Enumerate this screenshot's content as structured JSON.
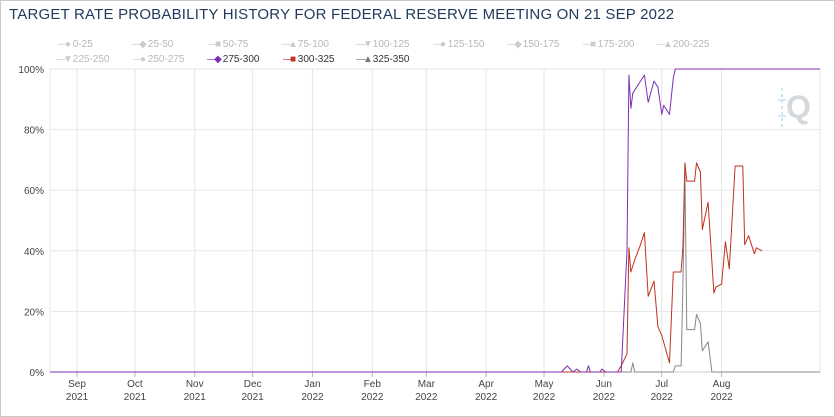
{
  "chart_data": {
    "type": "line",
    "title": "TARGET RATE PROBABILITY HISTORY FOR FEDERAL RESERVE MEETING ON 21 SEP 2022",
    "xlabel": "",
    "ylabel": "",
    "ylim": [
      0,
      100
    ],
    "y_ticks": [
      "0%",
      "20%",
      "40%",
      "60%",
      "80%",
      "100%"
    ],
    "x_range": [
      "2021-08-18",
      "2022-09-21"
    ],
    "x_ticks": [
      {
        "date": "2021-09-01",
        "month": "Sep",
        "year": "2021"
      },
      {
        "date": "2021-10-01",
        "month": "Oct",
        "year": "2021"
      },
      {
        "date": "2021-11-01",
        "month": "Nov",
        "year": "2021"
      },
      {
        "date": "2021-12-01",
        "month": "Dec",
        "year": "2021"
      },
      {
        "date": "2022-01-01",
        "month": "Jan",
        "year": "2022"
      },
      {
        "date": "2022-02-01",
        "month": "Feb",
        "year": "2022"
      },
      {
        "date": "2022-03-01",
        "month": "Mar",
        "year": "2022"
      },
      {
        "date": "2022-04-01",
        "month": "Apr",
        "year": "2022"
      },
      {
        "date": "2022-05-01",
        "month": "May",
        "year": "2022"
      },
      {
        "date": "2022-06-01",
        "month": "Jun",
        "year": "2022"
      },
      {
        "date": "2022-07-01",
        "month": "Jul",
        "year": "2022"
      },
      {
        "date": "2022-08-01",
        "month": "Aug",
        "year": "2022"
      }
    ],
    "grid": true,
    "legend_position": "top-left",
    "legend": [
      {
        "name": "0-25",
        "color": "#cccccc",
        "marker": "circle",
        "active": false
      },
      {
        "name": "25-50",
        "color": "#cccccc",
        "marker": "diamond",
        "active": false
      },
      {
        "name": "50-75",
        "color": "#cccccc",
        "marker": "square",
        "active": false
      },
      {
        "name": "75-100",
        "color": "#cccccc",
        "marker": "triangle",
        "active": false
      },
      {
        "name": "100-125",
        "color": "#cccccc",
        "marker": "triangle-down",
        "active": false
      },
      {
        "name": "125-150",
        "color": "#cccccc",
        "marker": "circle",
        "active": false
      },
      {
        "name": "150-175",
        "color": "#cccccc",
        "marker": "diamond",
        "active": false
      },
      {
        "name": "175-200",
        "color": "#cccccc",
        "marker": "square",
        "active": false
      },
      {
        "name": "200-225",
        "color": "#cccccc",
        "marker": "triangle",
        "active": false
      },
      {
        "name": "225-250",
        "color": "#cccccc",
        "marker": "triangle-down",
        "active": false
      },
      {
        "name": "250-275",
        "color": "#cccccc",
        "marker": "circle",
        "active": false
      },
      {
        "name": "275-300",
        "color": "#7b2fb5",
        "marker": "diamond",
        "active": true
      },
      {
        "name": "300-325",
        "color": "#c0321e",
        "marker": "square",
        "active": true
      },
      {
        "name": "325-350",
        "color": "#777777",
        "marker": "triangle",
        "active": true
      }
    ],
    "series": [
      {
        "name": "275-300",
        "color": "#7b2fb5",
        "points": [
          [
            "2021-08-18",
            0
          ],
          [
            "2022-05-10",
            0
          ],
          [
            "2022-05-13",
            2
          ],
          [
            "2022-05-16",
            0
          ],
          [
            "2022-05-18",
            1
          ],
          [
            "2022-05-20",
            0
          ],
          [
            "2022-05-23",
            0
          ],
          [
            "2022-05-24",
            2
          ],
          [
            "2022-05-25",
            0
          ],
          [
            "2022-05-30",
            0
          ],
          [
            "2022-05-31",
            1
          ],
          [
            "2022-06-02",
            0
          ],
          [
            "2022-06-10",
            0
          ],
          [
            "2022-06-13",
            40
          ],
          [
            "2022-06-14",
            98
          ],
          [
            "2022-06-15",
            87
          ],
          [
            "2022-06-16",
            92
          ],
          [
            "2022-06-20",
            96
          ],
          [
            "2022-06-22",
            98
          ],
          [
            "2022-06-24",
            89
          ],
          [
            "2022-06-27",
            96
          ],
          [
            "2022-06-29",
            94
          ],
          [
            "2022-07-01",
            85
          ],
          [
            "2022-07-02",
            88
          ],
          [
            "2022-07-05",
            85
          ],
          [
            "2022-07-07",
            97
          ],
          [
            "2022-07-08",
            100
          ],
          [
            "2022-09-21",
            100
          ]
        ]
      },
      {
        "name": "300-325",
        "color": "#c0321e",
        "points": [
          [
            "2021-08-18",
            0
          ],
          [
            "2022-06-08",
            0
          ],
          [
            "2022-06-10",
            2
          ],
          [
            "2022-06-13",
            6
          ],
          [
            "2022-06-14",
            41
          ],
          [
            "2022-06-15",
            33
          ],
          [
            "2022-06-17",
            37
          ],
          [
            "2022-06-20",
            42
          ],
          [
            "2022-06-22",
            46
          ],
          [
            "2022-06-24",
            25
          ],
          [
            "2022-06-27",
            30
          ],
          [
            "2022-06-29",
            15
          ],
          [
            "2022-07-01",
            12
          ],
          [
            "2022-07-05",
            3
          ],
          [
            "2022-07-07",
            33
          ],
          [
            "2022-07-11",
            33
          ],
          [
            "2022-07-12",
            42
          ],
          [
            "2022-07-13",
            69
          ],
          [
            "2022-07-14",
            63
          ],
          [
            "2022-07-15",
            63
          ],
          [
            "2022-07-18",
            63
          ],
          [
            "2022-07-19",
            69
          ],
          [
            "2022-07-21",
            66
          ],
          [
            "2022-07-22",
            47
          ],
          [
            "2022-07-25",
            56
          ],
          [
            "2022-07-28",
            26
          ],
          [
            "2022-07-29",
            28
          ],
          [
            "2022-08-01",
            29
          ],
          [
            "2022-08-03",
            43
          ],
          [
            "2022-08-05",
            34
          ],
          [
            "2022-08-08",
            68
          ],
          [
            "2022-08-12",
            68
          ],
          [
            "2022-08-13",
            42
          ],
          [
            "2022-08-15",
            45
          ],
          [
            "2022-08-18",
            39
          ],
          [
            "2022-08-19",
            41
          ],
          [
            "2022-08-22",
            40
          ]
        ]
      },
      {
        "name": "325-350",
        "color": "#888888",
        "points": [
          [
            "2021-08-18",
            0
          ],
          [
            "2022-06-15",
            0
          ],
          [
            "2022-06-16",
            3
          ],
          [
            "2022-06-17",
            0
          ],
          [
            "2022-07-07",
            0
          ],
          [
            "2022-07-08",
            2
          ],
          [
            "2022-07-11",
            2
          ],
          [
            "2022-07-12",
            30
          ],
          [
            "2022-07-13",
            66
          ],
          [
            "2022-07-14",
            14
          ],
          [
            "2022-07-15",
            14
          ],
          [
            "2022-07-18",
            14
          ],
          [
            "2022-07-19",
            19
          ],
          [
            "2022-07-21",
            16
          ],
          [
            "2022-07-22",
            7
          ],
          [
            "2022-07-25",
            10
          ],
          [
            "2022-07-27",
            0
          ],
          [
            "2022-09-21",
            0
          ]
        ]
      }
    ]
  }
}
